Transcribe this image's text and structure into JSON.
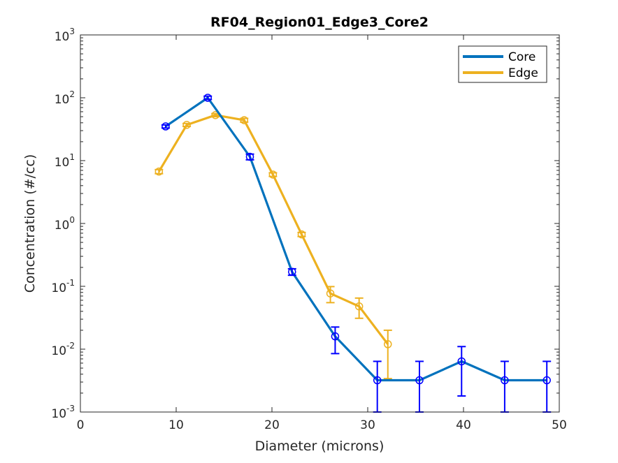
{
  "chart_data": {
    "type": "line",
    "title": "RF04_Region01_Edge3_Core2",
    "xlabel": "Diameter (microns)",
    "ylabel": "Concentration (#/cc)",
    "xlim": [
      0,
      50
    ],
    "ylim": [
      0.001,
      1000
    ],
    "yscale": "log",
    "grid": false,
    "legend_position": "top-right",
    "x_ticks": [
      0,
      10,
      20,
      30,
      40,
      50
    ],
    "y_ticks": [
      {
        "value": 0.001,
        "base": "10",
        "exp": "-3"
      },
      {
        "value": 0.01,
        "base": "10",
        "exp": "-2"
      },
      {
        "value": 0.1,
        "base": "10",
        "exp": "-1"
      },
      {
        "value": 1,
        "base": "10",
        "exp": "0"
      },
      {
        "value": 10,
        "base": "10",
        "exp": "1"
      },
      {
        "value": 100,
        "base": "10",
        "exp": "2"
      },
      {
        "value": 1000,
        "base": "10",
        "exp": "3"
      }
    ],
    "series": [
      {
        "name": "Core",
        "color": "#0072bd",
        "marker_color": "#0000ff",
        "x": [
          8.9,
          13.3,
          17.7,
          22.1,
          26.6,
          31.0,
          35.4,
          39.8,
          44.3,
          48.7
        ],
        "y": [
          35,
          100,
          11.5,
          0.17,
          0.016,
          0.0032,
          0.0032,
          0.0064,
          0.0032,
          0.0032
        ],
        "err_low": [
          2,
          6,
          1.2,
          0.02,
          0.0075,
          0.0032,
          0.0032,
          0.0046,
          0.0032,
          0.0032
        ],
        "err_high": [
          2,
          6,
          1.2,
          0.02,
          0.0065,
          0.0032,
          0.0032,
          0.0046,
          0.0032,
          0.0032
        ]
      },
      {
        "name": "Edge",
        "color": "#edb120",
        "marker_color": "#edb120",
        "x": [
          8.2,
          11.1,
          14.1,
          17.1,
          20.1,
          23.1,
          26.1,
          29.1,
          32.1
        ],
        "y": [
          6.7,
          37,
          53,
          44,
          6.0,
          0.67,
          0.077,
          0.048,
          0.012
        ],
        "err_low": [
          0.5,
          2,
          3,
          3,
          0.4,
          0.05,
          0.022,
          0.017,
          0.0086
        ],
        "err_high": [
          0.5,
          2,
          3,
          3,
          0.4,
          0.05,
          0.022,
          0.017,
          0.008
        ]
      }
    ]
  }
}
